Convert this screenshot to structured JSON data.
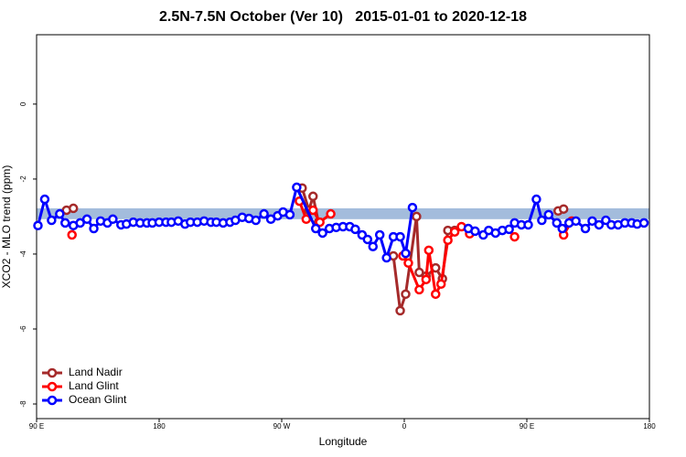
{
  "chart_data": {
    "type": "line",
    "title": "2.5N-7.5N October (Ver 10)   2015-01-01 to 2020-12-18",
    "x_label": "Longitude",
    "y_label": "XCO2 - MLO trend (ppm)",
    "xlim": [
      -270,
      180
    ],
    "ylim": [
      -8.39,
      1.85
    ],
    "xticks": [
      {
        "value": -270,
        "label": "90 E"
      },
      {
        "value": -180,
        "label": "180"
      },
      {
        "value": -90,
        "label": "90 W"
      },
      0,
      {
        "value": 90,
        "label": "90 E"
      },
      180
    ],
    "yticks": [
      0,
      -2,
      -4,
      -6,
      -8
    ],
    "band": {
      "range": [
        -3.07,
        -2.78
      ],
      "color": "#a3bcdc"
    },
    "legend": "bottom-left",
    "series": [
      {
        "name": "Land Nadir",
        "color": "#a52a2a",
        "x": [
          -248,
          -243,
          null,
          -75,
          -70,
          -67,
          -63,
          null,
          -8,
          -3,
          1,
          9,
          11,
          16,
          23,
          28,
          32,
          37,
          null,
          113,
          117
        ],
        "values": [
          -2.83,
          -2.78,
          null,
          -2.24,
          -2.83,
          -2.46,
          -3.15,
          null,
          -4.05,
          -5.51,
          -5.07,
          -3.0,
          -4.49,
          -4.59,
          -4.37,
          -4.66,
          -3.37,
          -3.37,
          null,
          -2.85,
          -2.8
        ]
      },
      {
        "name": "Land Glint",
        "color": "#ff0000",
        "x": [
          -244,
          null,
          -77,
          -72,
          -67,
          -62,
          -54,
          null,
          -1,
          3,
          11,
          16,
          18,
          23,
          27,
          32,
          37,
          42,
          48,
          null,
          81,
          null,
          117,
          123
        ],
        "values": [
          -3.49,
          null,
          -2.59,
          -3.07,
          -2.83,
          -3.15,
          -2.93,
          null,
          -4.05,
          -4.24,
          -4.95,
          -4.68,
          -3.9,
          -5.07,
          -4.8,
          -3.63,
          -3.41,
          -3.27,
          -3.46,
          null,
          -3.54,
          null,
          -3.49,
          -3.12
        ]
      },
      {
        "name": "Ocean Glint",
        "color": "#0000ff",
        "x": [
          -269,
          -264,
          -259,
          -253,
          -249,
          -243,
          -238,
          -233,
          -228,
          -223,
          -218,
          -214,
          -208,
          -204,
          -199,
          -194,
          -189,
          -185,
          -180,
          -175,
          -171,
          -166,
          -161,
          -157,
          -152,
          -147,
          -142,
          -138,
          -133,
          -128,
          -124,
          -119,
          -114,
          -109,
          -103,
          -98,
          -93,
          -89,
          -84,
          -79,
          -65,
          -60,
          -55,
          -50,
          -45,
          -40,
          -36,
          -31,
          -27,
          -23,
          -18,
          -13,
          -8,
          -3,
          1,
          6,
          null,
          47,
          52,
          58,
          62,
          67,
          72,
          77,
          81,
          86,
          91,
          97,
          101,
          106,
          112,
          116,
          121,
          126,
          133,
          138,
          143,
          148,
          152,
          157,
          162,
          167,
          171,
          176
        ],
        "values": [
          -3.24,
          -2.54,
          -3.1,
          -2.93,
          -3.17,
          -3.24,
          -3.17,
          -3.07,
          -3.32,
          -3.12,
          -3.17,
          -3.07,
          -3.22,
          -3.2,
          -3.15,
          -3.17,
          -3.17,
          -3.17,
          -3.15,
          -3.15,
          -3.15,
          -3.12,
          -3.2,
          -3.15,
          -3.15,
          -3.12,
          -3.15,
          -3.15,
          -3.17,
          -3.15,
          -3.1,
          -3.02,
          -3.05,
          -3.1,
          -2.93,
          -3.07,
          -2.98,
          -2.88,
          -2.95,
          -2.22,
          -3.32,
          -3.44,
          -3.32,
          -3.29,
          -3.27,
          -3.27,
          -3.34,
          -3.49,
          -3.61,
          -3.8,
          -3.49,
          -4.1,
          -3.54,
          -3.54,
          -3.98,
          -2.76,
          null,
          -3.32,
          -3.39,
          -3.49,
          -3.37,
          -3.44,
          -3.37,
          -3.34,
          -3.17,
          -3.22,
          -3.22,
          -2.54,
          -3.1,
          -2.95,
          -3.17,
          -3.32,
          -3.17,
          -3.12,
          -3.32,
          -3.12,
          -3.22,
          -3.1,
          -3.22,
          -3.22,
          -3.17,
          -3.17,
          -3.2,
          -3.17
        ]
      }
    ]
  }
}
